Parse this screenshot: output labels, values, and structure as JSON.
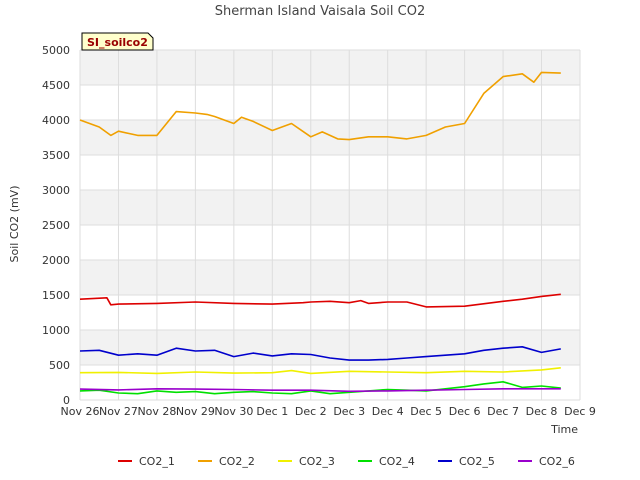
{
  "chart_data": {
    "type": "line",
    "title": "Sherman Island Vaisala Soil CO2",
    "xlabel": "Time",
    "ylabel": "Soil CO2 (mV)",
    "badge": "SI_soilco2",
    "xlim": [
      0,
      13
    ],
    "ylim": [
      0,
      5000
    ],
    "yticks": [
      0,
      500,
      1000,
      1500,
      2000,
      2500,
      3000,
      3500,
      4000,
      4500,
      5000
    ],
    "xticks": [
      {
        "v": 0,
        "label": "Nov 26"
      },
      {
        "v": 1,
        "label": "Nov 27"
      },
      {
        "v": 2,
        "label": "Nov 28"
      },
      {
        "v": 3,
        "label": "Nov 29"
      },
      {
        "v": 4,
        "label": "Nov 30"
      },
      {
        "v": 5,
        "label": "Dec 1"
      },
      {
        "v": 6,
        "label": "Dec 2"
      },
      {
        "v": 7,
        "label": "Dec 3"
      },
      {
        "v": 8,
        "label": "Dec 4"
      },
      {
        "v": 9,
        "label": "Dec 5"
      },
      {
        "v": 10,
        "label": "Dec 6"
      },
      {
        "v": 11,
        "label": "Dec 7"
      },
      {
        "v": 12,
        "label": "Dec 8"
      },
      {
        "v": 13,
        "label": "Dec 9"
      }
    ],
    "grid": true,
    "legend_position": "bottom",
    "series": [
      {
        "name": "CO2_1",
        "color": "#dd0000",
        "x": [
          0.0,
          0.7,
          0.8,
          1.0,
          2.0,
          3.0,
          4.0,
          5.0,
          5.8,
          6.0,
          6.5,
          7.0,
          7.3,
          7.5,
          8.0,
          8.5,
          9.0,
          10.0,
          11.0,
          11.5,
          12.0,
          12.5
        ],
        "y": [
          1440,
          1460,
          1360,
          1370,
          1380,
          1400,
          1380,
          1370,
          1390,
          1400,
          1410,
          1390,
          1420,
          1380,
          1400,
          1400,
          1330,
          1340,
          1410,
          1440,
          1480,
          1510
        ]
      },
      {
        "name": "CO2_2",
        "color": "#f0a000",
        "x": [
          0.0,
          0.5,
          0.8,
          1.0,
          1.5,
          2.0,
          2.5,
          3.0,
          3.3,
          3.5,
          4.0,
          4.2,
          4.5,
          5.0,
          5.5,
          6.0,
          6.3,
          6.7,
          7.0,
          7.5,
          8.0,
          8.5,
          9.0,
          9.5,
          10.0,
          10.5,
          11.0,
          11.5,
          11.8,
          12.0,
          12.5
        ],
        "y": [
          4000,
          3900,
          3780,
          3840,
          3780,
          3780,
          4120,
          4100,
          4080,
          4050,
          3950,
          4040,
          3980,
          3850,
          3950,
          3760,
          3830,
          3730,
          3720,
          3760,
          3760,
          3730,
          3780,
          3900,
          3950,
          4380,
          4620,
          4660,
          4540,
          4680,
          4670
        ]
      },
      {
        "name": "CO2_3",
        "color": "#f0f000",
        "x": [
          0.0,
          1.0,
          2.0,
          3.0,
          4.0,
          5.0,
          5.5,
          6.0,
          7.0,
          8.0,
          9.0,
          10.0,
          11.0,
          12.0,
          12.5
        ],
        "y": [
          390,
          395,
          380,
          400,
          385,
          390,
          420,
          380,
          410,
          400,
          390,
          410,
          400,
          430,
          460
        ]
      },
      {
        "name": "CO2_4",
        "color": "#00e000",
        "x": [
          0.0,
          0.5,
          1.0,
          1.5,
          2.0,
          2.5,
          3.0,
          3.5,
          4.0,
          4.5,
          5.0,
          5.5,
          6.0,
          6.5,
          7.0,
          7.5,
          8.0,
          8.5,
          9.0,
          9.5,
          10.0,
          10.5,
          11.0,
          11.5,
          12.0,
          12.5
        ],
        "y": [
          130,
          140,
          100,
          90,
          130,
          110,
          120,
          90,
          110,
          120,
          100,
          90,
          130,
          90,
          110,
          130,
          150,
          140,
          130,
          160,
          190,
          230,
          260,
          180,
          200,
          170
        ]
      },
      {
        "name": "CO2_5",
        "color": "#0000cc",
        "x": [
          0.0,
          0.5,
          1.0,
          1.5,
          2.0,
          2.5,
          3.0,
          3.5,
          4.0,
          4.5,
          5.0,
          5.5,
          6.0,
          6.5,
          7.0,
          7.5,
          8.0,
          8.5,
          9.0,
          9.5,
          10.0,
          10.5,
          11.0,
          11.5,
          12.0,
          12.5
        ],
        "y": [
          700,
          710,
          640,
          660,
          640,
          740,
          700,
          710,
          620,
          670,
          630,
          660,
          650,
          600,
          570,
          570,
          580,
          600,
          620,
          640,
          660,
          710,
          740,
          760,
          680,
          730
        ]
      },
      {
        "name": "CO2_6",
        "color": "#9900cc",
        "x": [
          0.0,
          1.0,
          2.0,
          3.0,
          4.0,
          5.0,
          6.0,
          7.0,
          8.0,
          9.0,
          10.0,
          11.0,
          12.0,
          12.5
        ],
        "y": [
          155,
          145,
          160,
          155,
          150,
          140,
          140,
          125,
          130,
          140,
          150,
          160,
          160,
          160
        ]
      }
    ]
  }
}
